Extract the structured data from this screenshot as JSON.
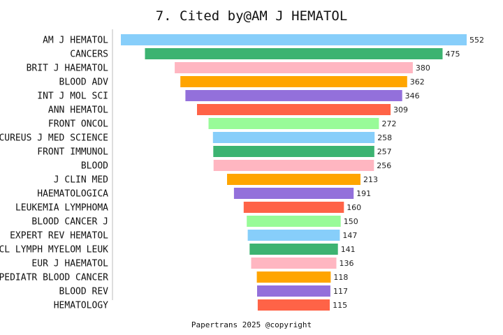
{
  "chart_data": {
    "type": "bar",
    "orientation": "horizontal-funnel",
    "title": "7. Cited by@AM J HEMATOL",
    "categories": [
      "AM J HEMATOL",
      "CANCERS",
      "BRIT J HAEMATOL",
      "BLOOD ADV",
      "INT J MOL SCI",
      "ANN HEMATOL",
      "FRONT ONCOL",
      "CUREUS J MED SCIENCE",
      "FRONT IMMUNOL",
      "BLOOD",
      "J CLIN MED",
      "HAEMATOLOGICA",
      "LEUKEMIA LYMPHOMA",
      "BLOOD CANCER J",
      "EXPERT REV HEMATOL",
      "CL LYMPH MYELOM LEUK",
      "EUR J HAEMATOL",
      "PEDIATR BLOOD CANCER",
      "BLOOD REV",
      "HEMATOLOGY"
    ],
    "values": [
      552,
      475,
      380,
      362,
      346,
      309,
      272,
      258,
      257,
      256,
      213,
      191,
      160,
      150,
      147,
      141,
      136,
      118,
      117,
      115
    ],
    "colors": [
      "#87cefa",
      "#3cb371",
      "#ffb6c1",
      "#ffa500",
      "#9370db",
      "#ff6347",
      "#98fb98"
    ],
    "grid": false,
    "legend": "none"
  },
  "footer": "Papertrans 2025 @copyright"
}
